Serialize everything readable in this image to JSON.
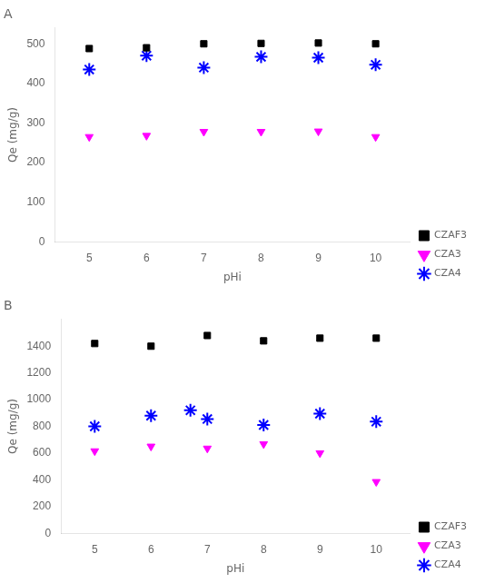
{
  "chart_data": [
    {
      "type": "scatter",
      "title": "A",
      "x": [
        5,
        6,
        7,
        8,
        9,
        10
      ],
      "series": [
        {
          "name": "CZAF3",
          "color": "#000000",
          "marker": "square",
          "values": [
            488,
            490,
            500,
            501,
            502,
            500
          ]
        },
        {
          "name": "CZA3",
          "color": "#ff00ff",
          "marker": "triangle_down",
          "values": [
            265,
            268,
            278,
            278,
            279,
            265
          ]
        },
        {
          "name": "CZA4",
          "color": "#0000ff",
          "marker": "star",
          "values": [
            435,
            470,
            440,
            467,
            465,
            447
          ]
        }
      ],
      "x_label": "pHi",
      "y_label": "Qe (mg/g)",
      "xlim": [
        4.4,
        10.6
      ],
      "xticks": [
        5,
        6,
        7,
        8,
        9,
        10
      ],
      "ylim": [
        0,
        540
      ],
      "yticks": [
        0,
        100,
        200,
        300,
        400,
        500
      ],
      "grid": false,
      "legend": "lower right"
    },
    {
      "type": "scatter",
      "title": "B",
      "x": [
        5,
        6,
        7,
        8,
        9,
        10
      ],
      "series": [
        {
          "name": "CZAF3",
          "color": "#000000",
          "marker": "square",
          "values": [
            1420,
            1400,
            1480,
            1440,
            1460,
            1460
          ]
        },
        {
          "name": "CZA3",
          "color": "#ff00ff",
          "marker": "triangle_down",
          "values": [
            615,
            650,
            635,
            668,
            600,
            385
          ]
        },
        {
          "name": "CZA4",
          "color": "#0000ff",
          "marker": "star",
          "x": [
            5,
            6,
            6.7,
            7,
            8,
            9,
            10
          ],
          "values": [
            800,
            880,
            920,
            855,
            810,
            895,
            835
          ]
        }
      ],
      "x_label": "pHi",
      "y_label": "Qe (mg/g)",
      "xlim": [
        4.4,
        10.6
      ],
      "xticks": [
        5,
        6,
        7,
        8,
        9,
        10
      ],
      "ylim": [
        0,
        1600
      ],
      "yticks": [
        0,
        200,
        400,
        600,
        800,
        1000,
        1200,
        1400
      ],
      "grid": false,
      "legend": "lower right"
    }
  ]
}
